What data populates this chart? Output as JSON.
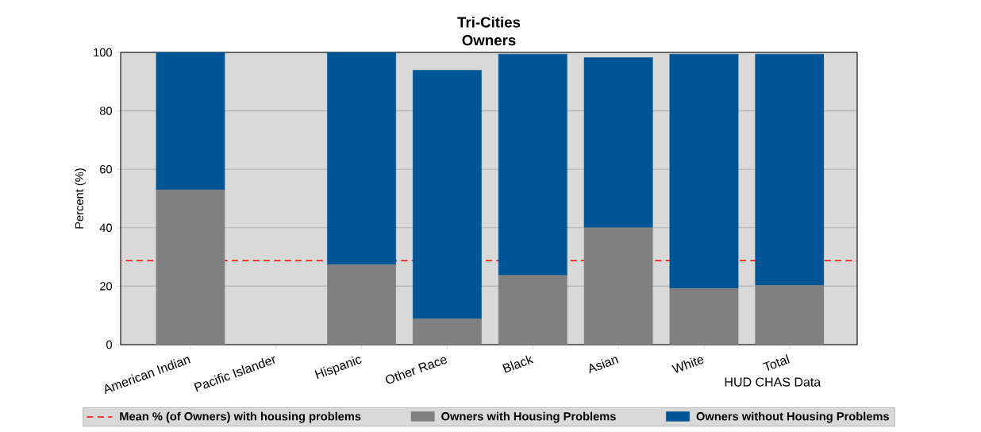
{
  "chart_data": {
    "type": "bar",
    "title": "Tri-Cities",
    "subtitle": "Owners",
    "ylabel": "Percent (%)",
    "categories": [
      "American Indian",
      "Pacific Islander",
      "Hispanic",
      "Other Race",
      "Black",
      "Asian",
      "White",
      "Total"
    ],
    "stacked": true,
    "series": [
      {
        "name": "Owners with Housing Problems",
        "color": "#808080",
        "values": [
          53,
          null,
          27.4,
          8.8,
          23.7,
          40,
          19.2,
          20.3
        ]
      },
      {
        "name": "Owners without Housing Problems",
        "color": "#005596",
        "values": [
          47,
          null,
          72.6,
          85.1,
          75.7,
          58.2,
          80.2,
          79.1
        ]
      }
    ],
    "ylim": [
      0,
      100
    ],
    "yticks": [
      0,
      20,
      40,
      60,
      80,
      100
    ],
    "grid": "y",
    "legend": "bottom",
    "ref_lines": [
      {
        "axis": "y",
        "value": 28.7,
        "label": "Mean % (of Owners) with housing problems",
        "color": "#ff0000",
        "line_style": "dashed"
      }
    ],
    "annotations": [
      "HUD CHAS Data"
    ]
  }
}
